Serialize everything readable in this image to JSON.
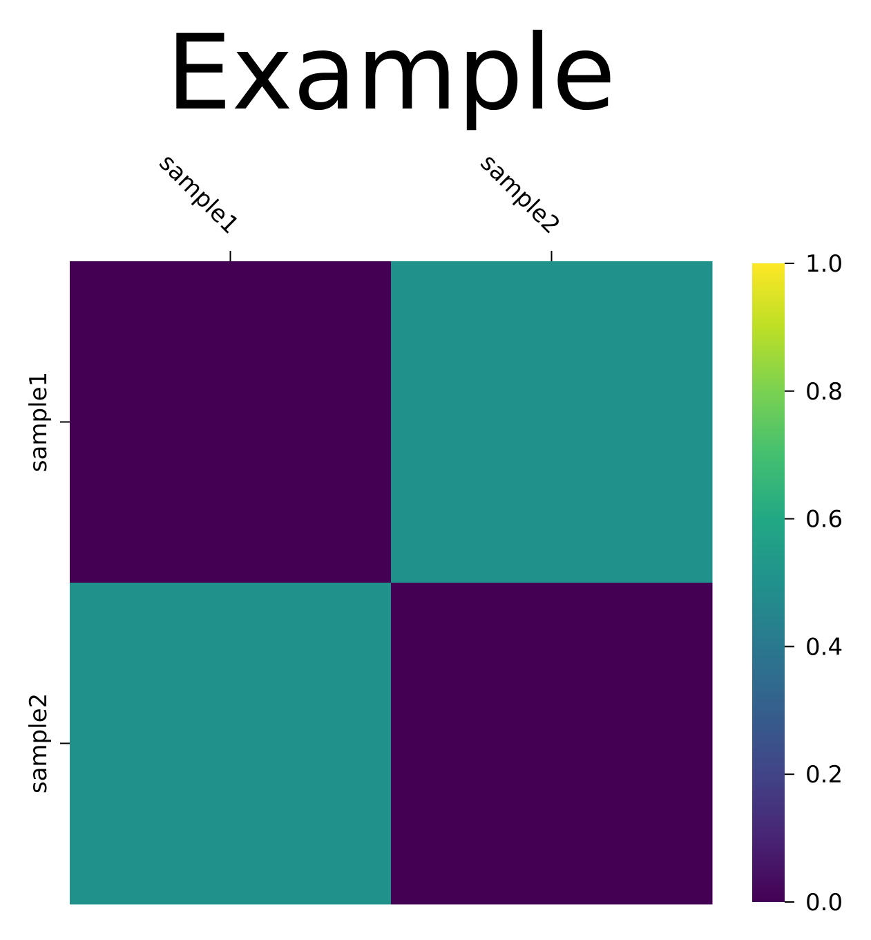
{
  "chart_data": {
    "type": "heatmap",
    "title": "Example",
    "x_categories": [
      "sample1",
      "sample2"
    ],
    "y_categories": [
      "sample1",
      "sample2"
    ],
    "values": [
      [
        0.0,
        0.5
      ],
      [
        0.5,
        0.0
      ]
    ],
    "colormap": "viridis",
    "colorbar": {
      "min": 0.0,
      "max": 1.0,
      "ticks": [
        "0.0",
        "0.2",
        "0.4",
        "0.6",
        "0.8",
        "1.0"
      ]
    },
    "x_tick_position": "top",
    "grid": false,
    "legend": "colorbar-right"
  }
}
